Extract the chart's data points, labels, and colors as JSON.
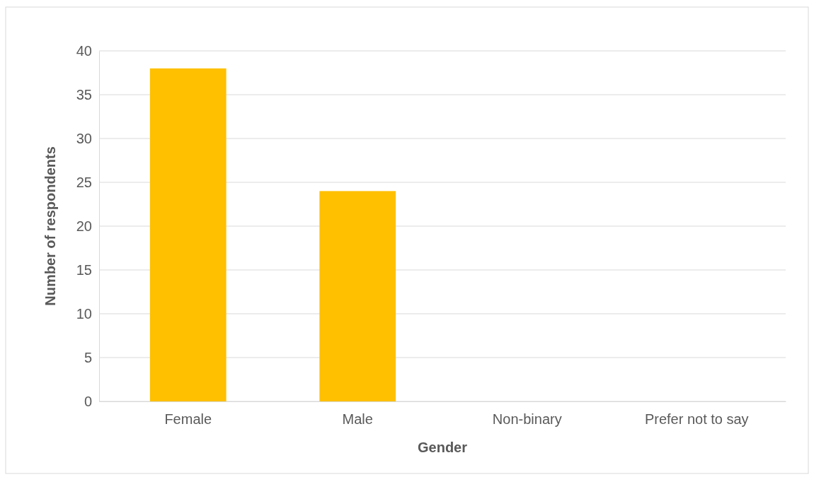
{
  "chart_data": {
    "type": "bar",
    "xlabel": "Gender",
    "ylabel": "Number of respondents",
    "categories": [
      "Female",
      "Male",
      "Non-binary",
      "Prefer not to say"
    ],
    "values": [
      38,
      24,
      0,
      0
    ],
    "color": "#ffc000",
    "ylim": [
      0,
      40
    ],
    "yticks": [
      0,
      5,
      10,
      15,
      20,
      25,
      30,
      35,
      40
    ],
    "grid": "y"
  }
}
